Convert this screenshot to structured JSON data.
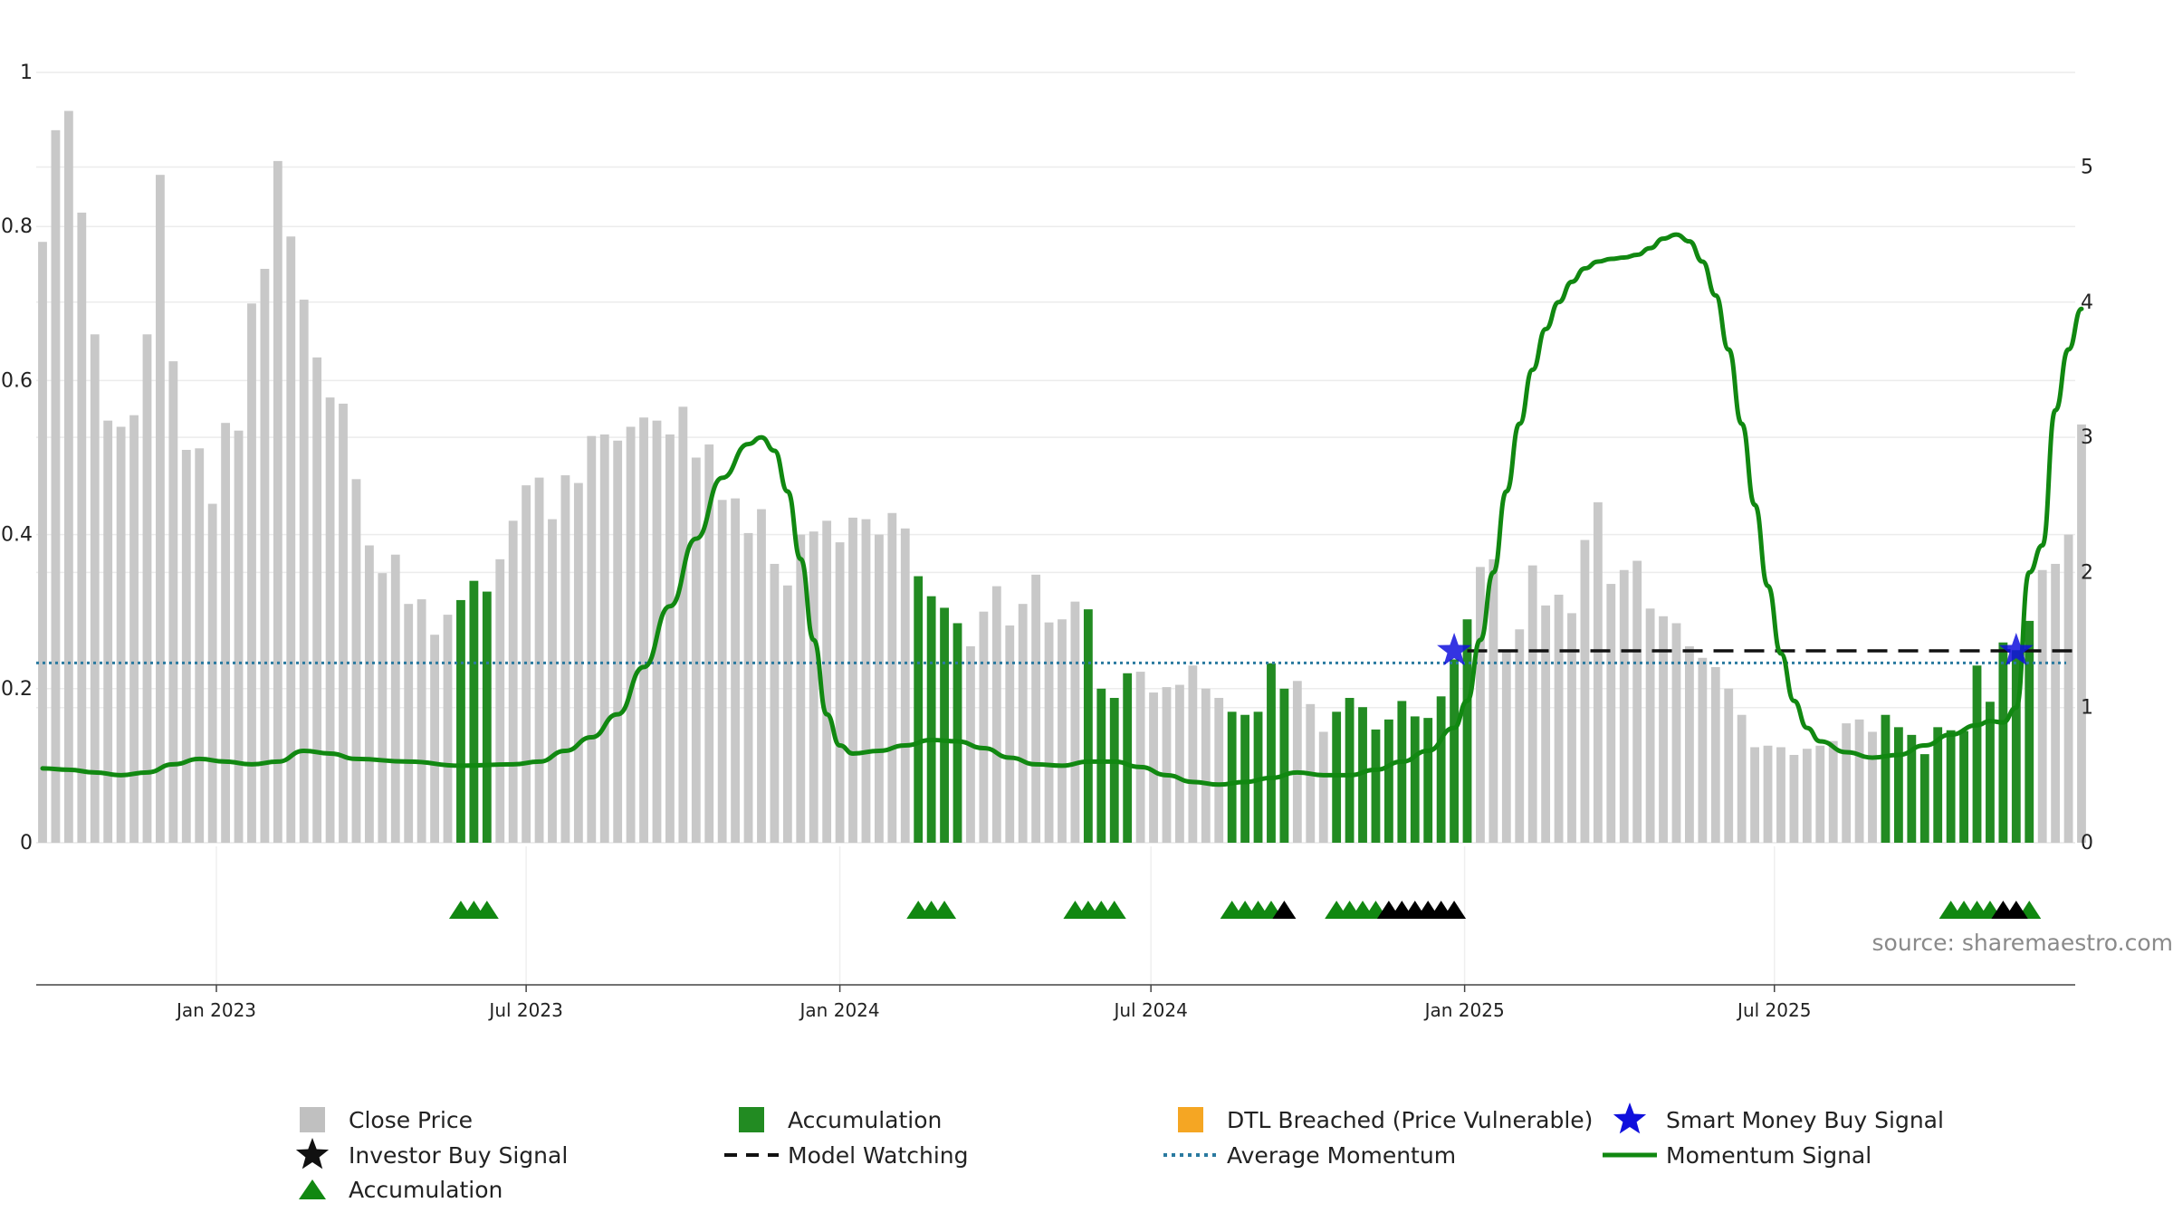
{
  "chart_data": {
    "type": "bar",
    "title": "",
    "xlabel": "",
    "ylabel": "",
    "source": "source: sharemaestro.com",
    "left_axis": {
      "ylim": [
        0,
        1.0
      ],
      "ticks": [
        "0",
        "0.2",
        "0.4",
        "0.6",
        "0.8",
        "1"
      ]
    },
    "right_axis": {
      "ylim": [
        0,
        5.7
      ],
      "ticks": [
        "0",
        "1",
        "2",
        "3",
        "4",
        "5"
      ]
    },
    "x_ticks": [
      "Jan 2023",
      "Jul 2023",
      "Jan 2024",
      "Jul 2024",
      "Jan 2025",
      "Jul 2025"
    ],
    "grid": true,
    "colors": {
      "close": "#c8c8c8",
      "accumulation": "#228b22",
      "momentum": "#118811",
      "average": "#2a7aa0",
      "watch": "#111111",
      "smart_money": "#1010dd",
      "dtl": "#f5a623"
    },
    "close_values": [
      0.78,
      0.925,
      0.95,
      0.818,
      0.66,
      0.548,
      0.54,
      0.555,
      0.66,
      0.867,
      0.625,
      0.51,
      0.512,
      0.44,
      0.545,
      0.535,
      0.7,
      0.745,
      0.885,
      0.787,
      0.705,
      0.63,
      0.578,
      0.57,
      0.472,
      0.386,
      0.35,
      0.374,
      0.31,
      0.316,
      0.27,
      0.296,
      0.315,
      0.34,
      0.326,
      0.368,
      0.418,
      0.464,
      0.474,
      0.42,
      0.477,
      0.467,
      0.528,
      0.53,
      0.522,
      0.54,
      0.552,
      0.548,
      0.53,
      0.566,
      0.5,
      0.517,
      0.445,
      0.447,
      0.402,
      0.433,
      0.362,
      0.334,
      0.4,
      0.404,
      0.418,
      0.39,
      0.422,
      0.42,
      0.4,
      0.428,
      0.408,
      0.346,
      0.32,
      0.305,
      0.285,
      0.255,
      0.3,
      0.333,
      0.282,
      0.31,
      0.348,
      0.286,
      0.29,
      0.313,
      0.303,
      0.2,
      0.188,
      0.22,
      0.222,
      0.195,
      0.202,
      0.205,
      0.23,
      0.2,
      0.188,
      0.17,
      0.166,
      0.17,
      0.233,
      0.2,
      0.21,
      0.18,
      0.144,
      0.17,
      0.188,
      0.176,
      0.147,
      0.16,
      0.184,
      0.164,
      0.162,
      0.19,
      0.238,
      0.29,
      0.358,
      0.368,
      0.248,
      0.277,
      0.36,
      0.308,
      0.322,
      0.298,
      0.393,
      0.442,
      0.336,
      0.354,
      0.366,
      0.304,
      0.294,
      0.285,
      0.255,
      0.24,
      0.228,
      0.2,
      0.166,
      0.124,
      0.126,
      0.124,
      0.114,
      0.122,
      0.126,
      0.132,
      0.155,
      0.16,
      0.144,
      0.166,
      0.15,
      0.14,
      0.115,
      0.15,
      0.146,
      0.145,
      0.23,
      0.183,
      0.26,
      0.25,
      0.288,
      0.354,
      0.362,
      0.4,
      0.543
    ],
    "accumulation_bar_indices": [
      32,
      33,
      34,
      67,
      68,
      69,
      70,
      80,
      81,
      82,
      83,
      91,
      92,
      93,
      94,
      95,
      99,
      100,
      101,
      102,
      103,
      104,
      105,
      106,
      107,
      108,
      109,
      141,
      142,
      143,
      144,
      145,
      146,
      147,
      148,
      149,
      150,
      151,
      152
    ],
    "momentum_signal": [
      [
        0,
        0.55
      ],
      [
        2,
        0.54
      ],
      [
        4,
        0.52
      ],
      [
        6,
        0.5
      ],
      [
        8,
        0.52
      ],
      [
        10,
        0.58
      ],
      [
        12,
        0.62
      ],
      [
        14,
        0.6
      ],
      [
        16,
        0.58
      ],
      [
        18,
        0.6
      ],
      [
        20,
        0.68
      ],
      [
        22,
        0.66
      ],
      [
        24,
        0.62
      ],
      [
        28,
        0.6
      ],
      [
        32,
        0.57
      ],
      [
        36,
        0.58
      ],
      [
        38,
        0.6
      ],
      [
        40,
        0.68
      ],
      [
        42,
        0.78
      ],
      [
        44,
        0.95
      ],
      [
        46,
        1.3
      ],
      [
        48,
        1.75
      ],
      [
        50,
        2.25
      ],
      [
        52,
        2.7
      ],
      [
        54,
        2.95
      ],
      [
        55,
        3.0
      ],
      [
        56,
        2.9
      ],
      [
        57,
        2.6
      ],
      [
        58,
        2.1
      ],
      [
        59,
        1.5
      ],
      [
        60,
        0.95
      ],
      [
        61,
        0.72
      ],
      [
        62,
        0.66
      ],
      [
        64,
        0.68
      ],
      [
        66,
        0.72
      ],
      [
        68,
        0.76
      ],
      [
        70,
        0.75
      ],
      [
        72,
        0.7
      ],
      [
        74,
        0.63
      ],
      [
        76,
        0.58
      ],
      [
        78,
        0.57
      ],
      [
        80,
        0.6
      ],
      [
        82,
        0.6
      ],
      [
        84,
        0.56
      ],
      [
        86,
        0.5
      ],
      [
        88,
        0.45
      ],
      [
        90,
        0.43
      ],
      [
        92,
        0.45
      ],
      [
        94,
        0.48
      ],
      [
        96,
        0.52
      ],
      [
        98,
        0.5
      ],
      [
        100,
        0.5
      ],
      [
        102,
        0.54
      ],
      [
        104,
        0.6
      ],
      [
        106,
        0.68
      ],
      [
        108,
        0.85
      ],
      [
        109,
        1.05
      ],
      [
        110,
        1.5
      ],
      [
        111,
        2.0
      ],
      [
        112,
        2.6
      ],
      [
        113,
        3.1
      ],
      [
        114,
        3.5
      ],
      [
        115,
        3.8
      ],
      [
        116,
        4.0
      ],
      [
        117,
        4.15
      ],
      [
        118,
        4.25
      ],
      [
        119,
        4.3
      ],
      [
        120,
        4.32
      ],
      [
        121,
        4.33
      ],
      [
        122,
        4.35
      ],
      [
        123,
        4.4
      ],
      [
        124,
        4.47
      ],
      [
        125,
        4.5
      ],
      [
        126,
        4.45
      ],
      [
        127,
        4.3
      ],
      [
        128,
        4.05
      ],
      [
        129,
        3.65
      ],
      [
        130,
        3.1
      ],
      [
        131,
        2.5
      ],
      [
        132,
        1.9
      ],
      [
        133,
        1.4
      ],
      [
        134,
        1.05
      ],
      [
        135,
        0.85
      ],
      [
        136,
        0.75
      ],
      [
        138,
        0.67
      ],
      [
        140,
        0.63
      ],
      [
        142,
        0.65
      ],
      [
        144,
        0.72
      ],
      [
        146,
        0.8
      ],
      [
        148,
        0.87
      ],
      [
        149,
        0.9
      ],
      [
        150,
        0.89
      ],
      [
        151,
        1.0
      ],
      [
        152,
        2.0
      ],
      [
        153,
        2.2
      ],
      [
        154,
        3.2
      ],
      [
        155,
        3.65
      ],
      [
        156,
        3.95
      ]
    ],
    "average_momentum": 1.33,
    "model_watching": {
      "from_index": 109,
      "to_index": 156,
      "level": 1.42
    },
    "smart_money_signal_indices": [
      108,
      151
    ],
    "markers": {
      "accumulation_indices": [
        32,
        33,
        34,
        67,
        68,
        69,
        79,
        80,
        81,
        82,
        91,
        92,
        93,
        94,
        99,
        100,
        101,
        102,
        146,
        147,
        148,
        149,
        152
      ],
      "investor_buy_indices": [
        95,
        103,
        104,
        105,
        106,
        107,
        108,
        150,
        151
      ]
    },
    "legend": [
      {
        "label": "Close Price",
        "symbol": "square",
        "color": "#c0c0c0"
      },
      {
        "label": "Accumulation",
        "symbol": "square",
        "color": "#228b22"
      },
      {
        "label": "DTL Breached (Price Vulnerable)",
        "symbol": "square",
        "color": "#f5a623"
      },
      {
        "label": "Smart Money Buy Signal",
        "symbol": "star",
        "color": "#1010dd"
      },
      {
        "label": "Investor Buy Signal",
        "symbol": "star",
        "color": "#111111"
      },
      {
        "label": "Model Watching",
        "symbol": "dash",
        "color": "#111111"
      },
      {
        "label": "Average Momentum",
        "symbol": "dots",
        "color": "#2a7aa0"
      },
      {
        "label": "Momentum Signal",
        "symbol": "line",
        "color": "#118811"
      },
      {
        "label": "Accumulation",
        "symbol": "triangle",
        "color": "#118811"
      }
    ]
  }
}
